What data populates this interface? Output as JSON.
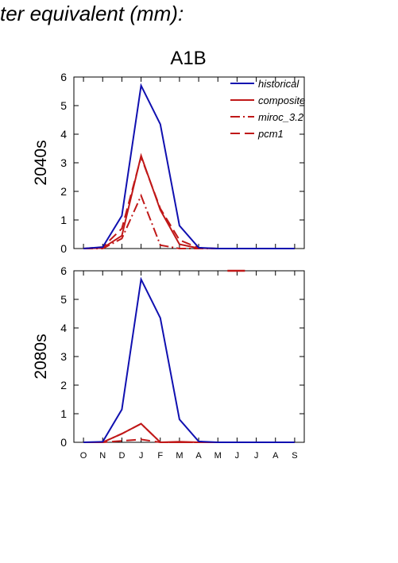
{
  "page": {
    "title": "ter equivalent (mm):"
  },
  "chart_data": {
    "type": "line",
    "title": "A1B",
    "categories": [
      "O",
      "N",
      "D",
      "J",
      "F",
      "M",
      "A",
      "M",
      "J",
      "J",
      "A",
      "S"
    ],
    "ylim": [
      0,
      6
    ],
    "yticks": [
      0,
      1,
      2,
      3,
      4,
      5,
      6
    ],
    "grid": false,
    "legend_position": "top-right",
    "legend": [
      {
        "name": "historical",
        "color": "#1010b0",
        "dash": "solid"
      },
      {
        "name": "composite",
        "color": "#c01818",
        "dash": "solid"
      },
      {
        "name": "miroc_3.2",
        "color": "#c01818",
        "dash": "dashdot"
      },
      {
        "name": "pcm1",
        "color": "#c01818",
        "dash": "longdash"
      }
    ],
    "panels": [
      {
        "label": "2040s",
        "series": [
          {
            "name": "historical",
            "values": [
              0,
              0.05,
              1.15,
              5.7,
              4.35,
              0.8,
              0.03,
              0,
              0,
              0,
              0,
              0
            ]
          },
          {
            "name": "composite",
            "values": [
              0,
              0.02,
              0.45,
              3.25,
              1.35,
              0.15,
              0.01,
              0,
              0,
              0,
              0,
              0
            ]
          },
          {
            "name": "miroc_3.2",
            "values": [
              0,
              0,
              0.35,
              1.85,
              0.12,
              0,
              0,
              0,
              0,
              0,
              0,
              0
            ]
          },
          {
            "name": "pcm1",
            "values": [
              0,
              0.05,
              0.7,
              3.2,
              1.4,
              0.3,
              0.02,
              0,
              0,
              0,
              0,
              0
            ]
          }
        ]
      },
      {
        "label": "2080s",
        "series": [
          {
            "name": "historical",
            "values": [
              0,
              0.02,
              1.15,
              5.7,
              4.35,
              0.8,
              0.03,
              0,
              0,
              0,
              0,
              0
            ]
          },
          {
            "name": "composite",
            "values": [
              0,
              0,
              0.3,
              0.65,
              0,
              0.02,
              0,
              0,
              0,
              0,
              0,
              0
            ]
          },
          {
            "name": "miroc_3.2",
            "values": [
              0,
              0,
              0.3,
              0.65,
              0,
              0,
              0,
              0,
              0,
              0,
              0,
              0
            ]
          },
          {
            "name": "pcm1",
            "values": [
              0,
              0,
              0.05,
              0.1,
              0,
              0,
              0,
              0,
              0,
              0,
              0,
              0
            ]
          }
        ]
      }
    ],
    "annotations": [
      {
        "panel": "2080s",
        "series": "pcm1",
        "x_from": "M",
        "x_to": "J",
        "y": 6
      }
    ]
  }
}
